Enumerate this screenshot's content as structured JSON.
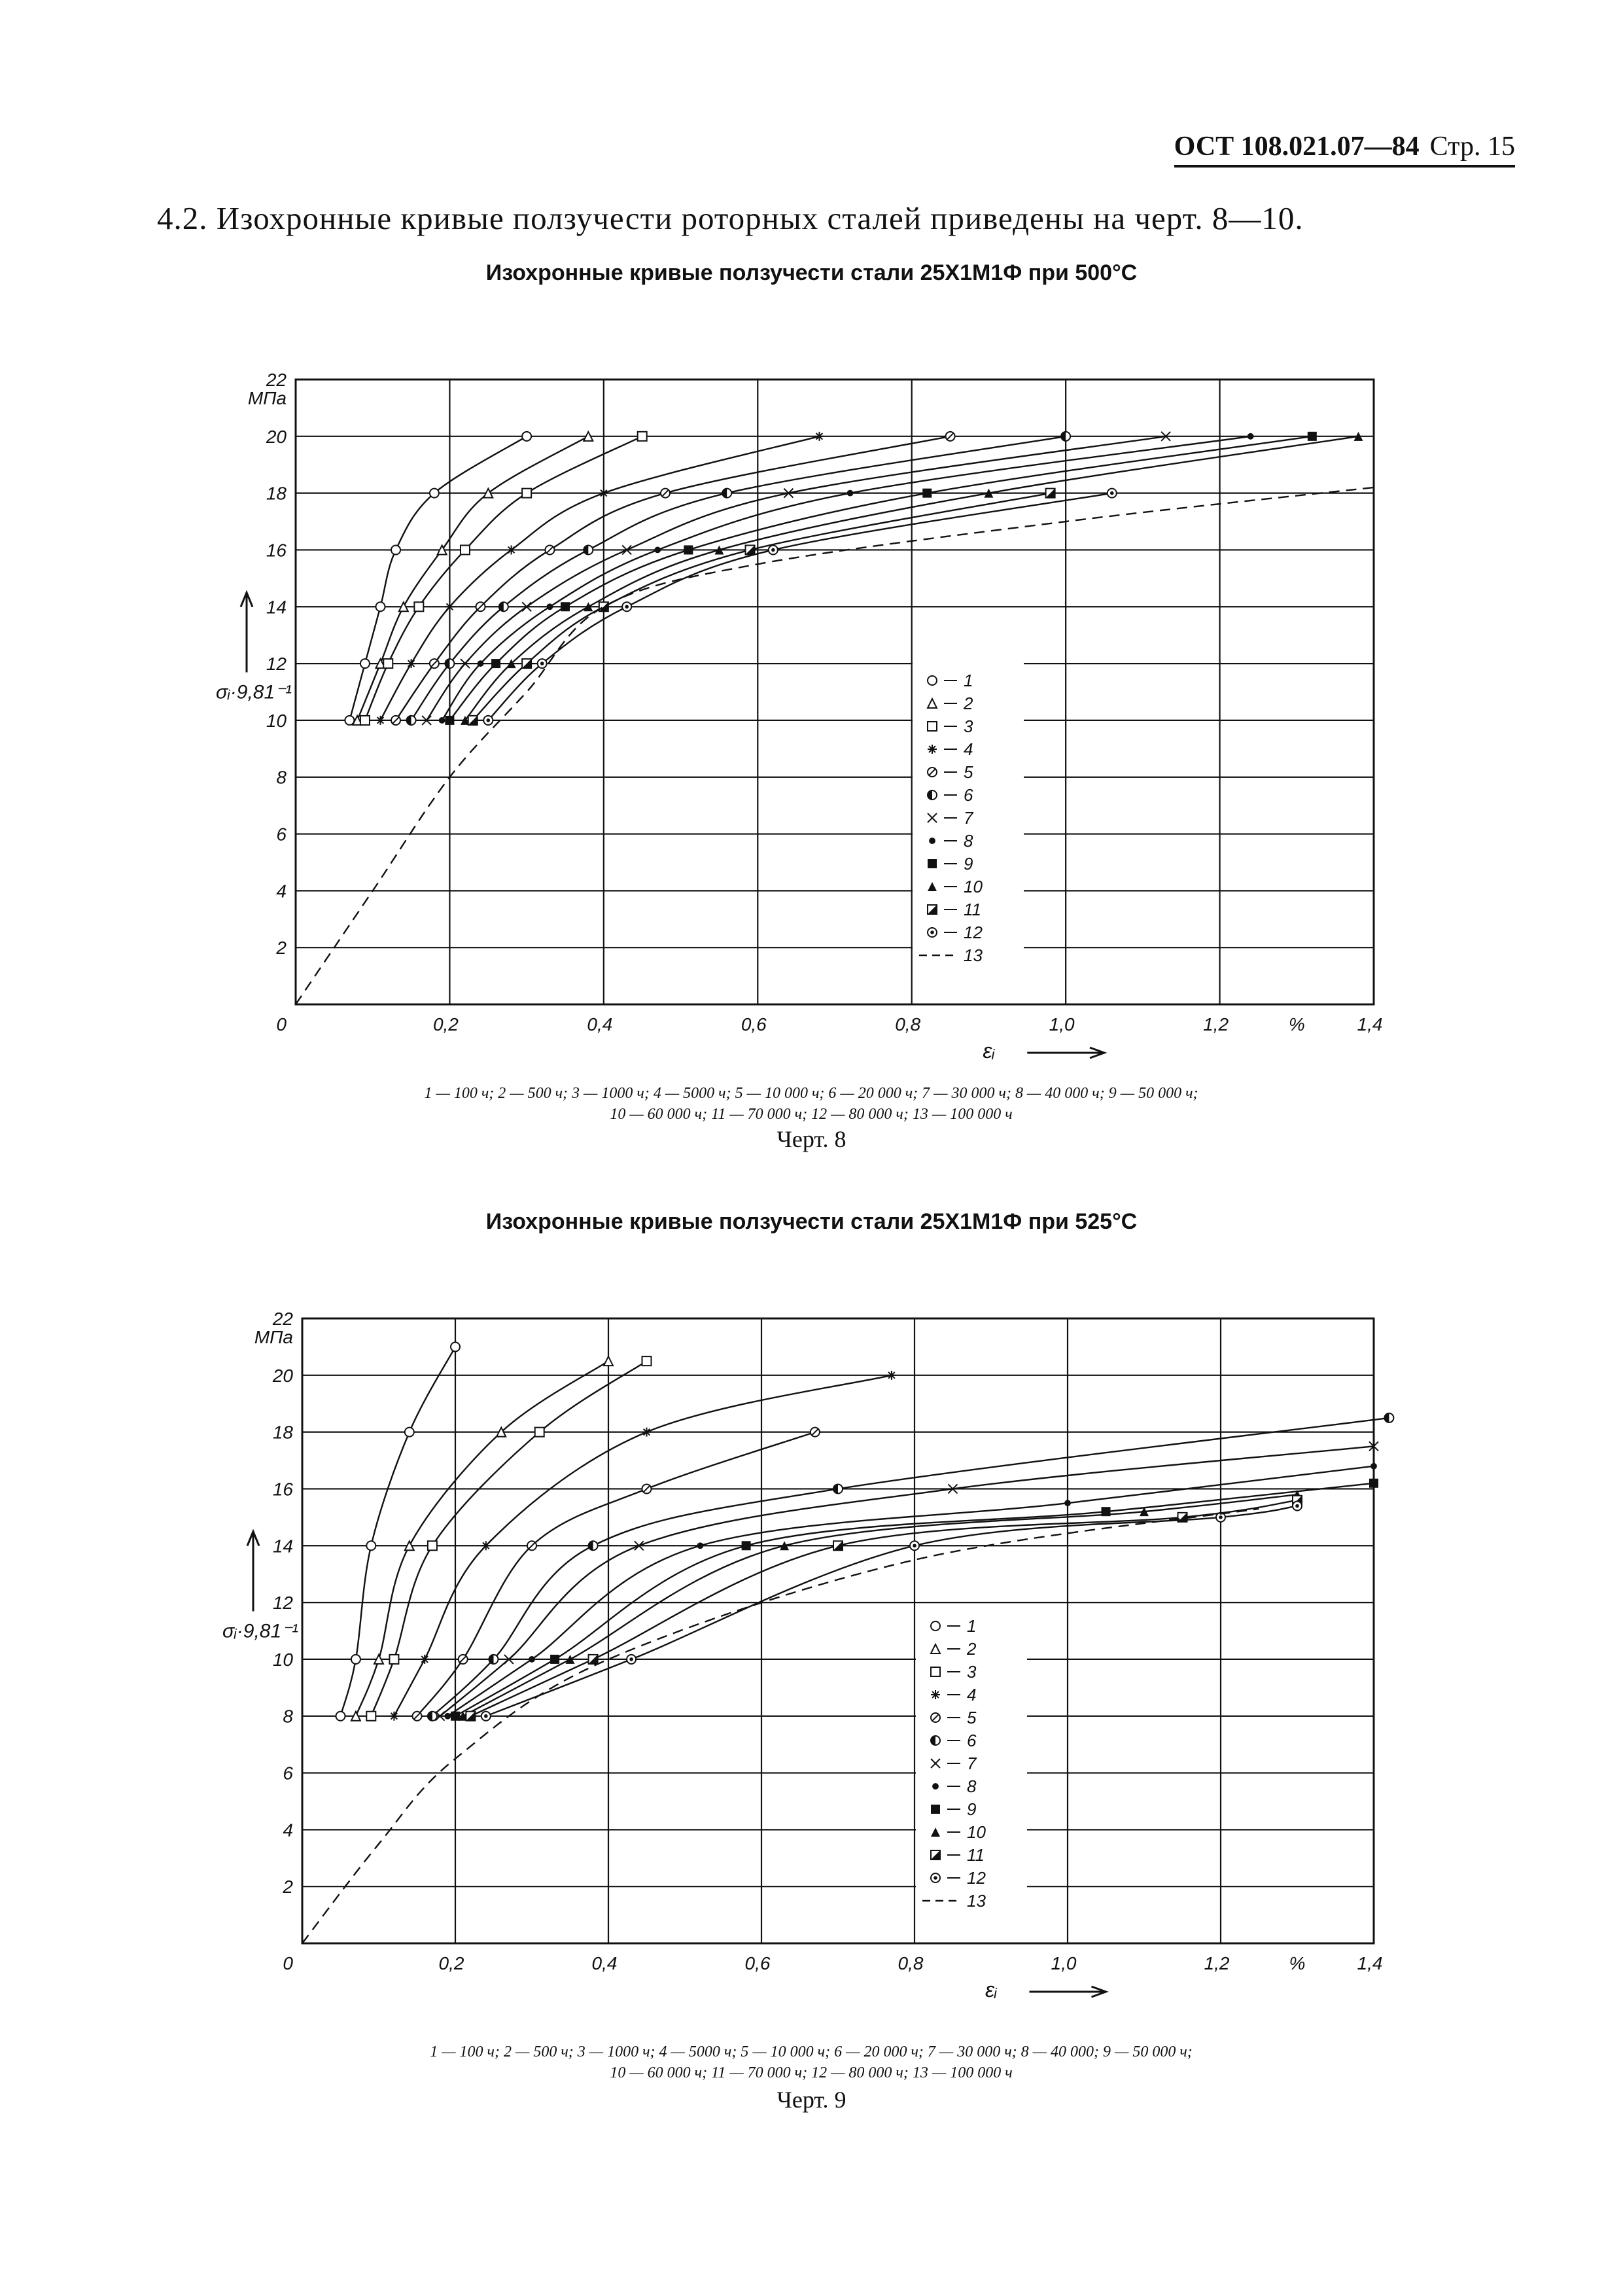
{
  "header": {
    "standard": "ОСТ 108.021.07—84",
    "page": "Стр. 15"
  },
  "intro": "4.2. Изохронные кривые ползучести роторных сталей приведены на черт. 8—10.",
  "figures": [
    {
      "title": "Изохронные кривые ползучести стали 25Х1М1Ф при 500°С",
      "caption_line1": "1 — 100 ч; 2 — 500 ч; 3 — 1000 ч; 4 — 5000 ч; 5 — 10 000 ч; 6 — 20 000 ч; 7 — 30 000 ч; 8 — 40 000 ч; 9 — 50 000 ч;",
      "caption_line2": "10 — 60 000 ч; 11 — 70 000 ч; 12 — 80 000 ч; 13 — 100 000 ч",
      "label": "Черт. 8"
    },
    {
      "title": "Изохронные кривые ползучести стали 25Х1М1Ф при 525°С",
      "caption_line1": "1 — 100 ч; 2 — 500 ч; 3 — 1000 ч; 4 — 5000 ч; 5 — 10 000 ч; 6 — 20 000 ч; 7 — 30 000 ч; 8 — 40 000; 9 — 50 000 ч;",
      "caption_line2": "10 — 60 000 ч; 11 — 70 000 ч; 12 — 80 000 ч; 13 — 100 000 ч",
      "label": "Черт. 9"
    }
  ],
  "chart_data": [
    {
      "type": "line",
      "title": "Изохронные кривые ползучести стали 25Х1М1Ф при 500°С",
      "xlabel": "εᵢ",
      "ylabel": "σᵢ·9,81⁻¹",
      "yunit": "МПа",
      "xunit": "%",
      "xlim": [
        0,
        1.4
      ],
      "ylim": [
        0,
        22
      ],
      "x_ticks": [
        "0,2",
        "0,4",
        "0,6",
        "0,8",
        "1,0",
        "1,2",
        "1,4"
      ],
      "y_ticks": [
        "2",
        "4",
        "6",
        "8",
        "10",
        "12",
        "14",
        "16",
        "18",
        "20",
        "22"
      ],
      "origin_label": "0",
      "grid": true,
      "legend_position": "bottom-right",
      "legend": [
        "1",
        "2",
        "3",
        "4",
        "5",
        "6",
        "7",
        "8",
        "9",
        "10",
        "11",
        "12",
        "13"
      ],
      "series": [
        {
          "name": "1",
          "x": [
            0.07,
            0.09,
            0.11,
            0.13,
            0.18,
            0.3
          ],
          "y": [
            10,
            12,
            14,
            16,
            18,
            20
          ]
        },
        {
          "name": "2",
          "x": [
            0.08,
            0.11,
            0.14,
            0.19,
            0.25,
            0.38
          ],
          "y": [
            10,
            12,
            14,
            16,
            18,
            20
          ]
        },
        {
          "name": "3",
          "x": [
            0.09,
            0.12,
            0.16,
            0.22,
            0.3,
            0.45
          ],
          "y": [
            10,
            12,
            14,
            16,
            18,
            20
          ]
        },
        {
          "name": "4",
          "x": [
            0.11,
            0.15,
            0.2,
            0.28,
            0.4,
            0.68
          ],
          "y": [
            10,
            12,
            14,
            16,
            18,
            20
          ]
        },
        {
          "name": "5",
          "x": [
            0.13,
            0.18,
            0.24,
            0.33,
            0.48,
            0.85
          ],
          "y": [
            10,
            12,
            14,
            16,
            18,
            20
          ]
        },
        {
          "name": "6",
          "x": [
            0.15,
            0.2,
            0.27,
            0.38,
            0.56,
            1.0
          ],
          "y": [
            10,
            12,
            14,
            16,
            18,
            20
          ]
        },
        {
          "name": "7",
          "x": [
            0.17,
            0.22,
            0.3,
            0.43,
            0.64,
            1.13
          ],
          "y": [
            10,
            12,
            14,
            16,
            18,
            20
          ]
        },
        {
          "name": "8",
          "x": [
            0.19,
            0.24,
            0.33,
            0.47,
            0.72,
            1.24
          ],
          "y": [
            10,
            12,
            14,
            16,
            18,
            20
          ]
        },
        {
          "name": "9",
          "x": [
            0.2,
            0.26,
            0.35,
            0.51,
            0.82,
            1.32
          ],
          "y": [
            10,
            12,
            14,
            16,
            18,
            20
          ]
        },
        {
          "name": "10",
          "x": [
            0.22,
            0.28,
            0.38,
            0.55,
            0.9,
            1.38
          ],
          "y": [
            10,
            12,
            14,
            16,
            18,
            20
          ]
        },
        {
          "name": "11",
          "x": [
            0.23,
            0.3,
            0.4,
            0.59,
            0.98
          ],
          "y": [
            10,
            12,
            14,
            16,
            18
          ]
        },
        {
          "name": "12",
          "x": [
            0.25,
            0.32,
            0.43,
            0.62,
            1.06
          ],
          "y": [
            10,
            12,
            14,
            16,
            18
          ]
        },
        {
          "name": "13",
          "x": [
            0.0,
            0.1,
            0.2,
            0.3,
            0.4,
            0.6,
            1.0,
            1.4
          ],
          "y": [
            0,
            4,
            8,
            11,
            14,
            15.5,
            17,
            18.2
          ]
        }
      ]
    },
    {
      "type": "line",
      "title": "Изохронные кривые ползучести стали 25Х1М1Ф при 525°С",
      "xlabel": "εᵢ",
      "ylabel": "σᵢ·9,81⁻¹",
      "yunit": "МПа",
      "xunit": "%",
      "xlim": [
        0,
        1.4
      ],
      "ylim": [
        0,
        22
      ],
      "x_ticks": [
        "0,2",
        "0,4",
        "0,6",
        "0,8",
        "1,0",
        "1,2",
        "1,4"
      ],
      "y_ticks": [
        "2",
        "4",
        "6",
        "8",
        "10",
        "12",
        "14",
        "16",
        "18",
        "20",
        "22"
      ],
      "origin_label": "0",
      "grid": true,
      "legend_position": "bottom-right",
      "legend": [
        "1",
        "2",
        "3",
        "4",
        "5",
        "6",
        "7",
        "8",
        "9",
        "10",
        "11",
        "12",
        "13"
      ],
      "series": [
        {
          "name": "1",
          "x": [
            0.05,
            0.07,
            0.09,
            0.14,
            0.2
          ],
          "y": [
            8,
            10,
            14,
            18,
            21
          ]
        },
        {
          "name": "2",
          "x": [
            0.07,
            0.1,
            0.14,
            0.26,
            0.4
          ],
          "y": [
            8,
            10,
            14,
            18,
            20.5
          ]
        },
        {
          "name": "3",
          "x": [
            0.09,
            0.12,
            0.17,
            0.31,
            0.45
          ],
          "y": [
            8,
            10,
            14,
            18,
            20.5
          ]
        },
        {
          "name": "4",
          "x": [
            0.12,
            0.16,
            0.24,
            0.45,
            0.77
          ],
          "y": [
            8,
            10,
            14,
            18,
            20
          ]
        },
        {
          "name": "5",
          "x": [
            0.15,
            0.21,
            0.3,
            0.45,
            0.67
          ],
          "y": [
            8,
            10,
            14,
            16,
            18
          ]
        },
        {
          "name": "6",
          "x": [
            0.17,
            0.25,
            0.38,
            0.7,
            1.42
          ],
          "y": [
            8,
            10,
            14,
            16,
            18.5
          ]
        },
        {
          "name": "7",
          "x": [
            0.18,
            0.27,
            0.44,
            0.85,
            1.4
          ],
          "y": [
            8,
            10,
            14,
            16,
            17.5
          ]
        },
        {
          "name": "8",
          "x": [
            0.19,
            0.3,
            0.52,
            1.0,
            1.4
          ],
          "y": [
            8,
            10,
            14,
            15.5,
            16.8
          ]
        },
        {
          "name": "9",
          "x": [
            0.2,
            0.33,
            0.58,
            1.05,
            1.4
          ],
          "y": [
            8,
            10,
            14,
            15.2,
            16.2
          ]
        },
        {
          "name": "10",
          "x": [
            0.21,
            0.35,
            0.63,
            1.1,
            1.3
          ],
          "y": [
            8,
            10,
            14,
            15.2,
            15.8
          ]
        },
        {
          "name": "11",
          "x": [
            0.22,
            0.38,
            0.7,
            1.15,
            1.3
          ],
          "y": [
            8,
            10,
            14,
            15,
            15.6
          ]
        },
        {
          "name": "12",
          "x": [
            0.24,
            0.43,
            0.8,
            1.2,
            1.3
          ],
          "y": [
            8,
            10,
            14,
            15,
            15.4
          ]
        },
        {
          "name": "13",
          "x": [
            0.0,
            0.1,
            0.2,
            0.4,
            0.8,
            1.25
          ],
          "y": [
            0,
            3.5,
            6.5,
            10,
            13.5,
            15.3
          ]
        }
      ]
    }
  ]
}
